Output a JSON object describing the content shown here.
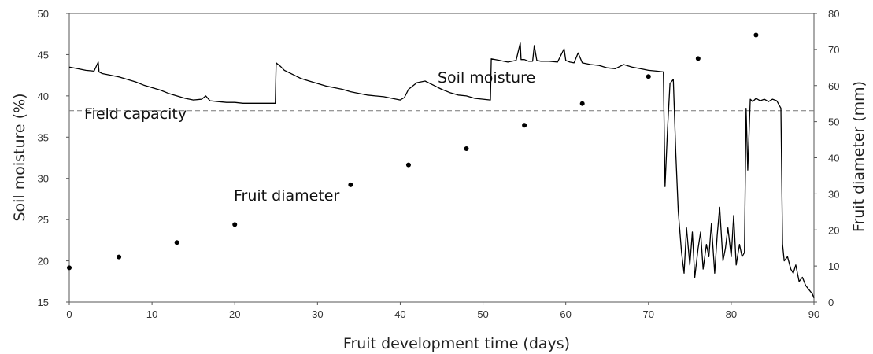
{
  "chart_data": {
    "type": "line",
    "xlabel": "Fruit development time (days)",
    "ylabel_left": "Soil moisture (%)",
    "ylabel_right": "Fruit diameter (mm)",
    "xlim": [
      0,
      90
    ],
    "ylim_left": [
      15,
      50
    ],
    "ylim_right": [
      0,
      80
    ],
    "x_ticks": [
      0,
      10,
      20,
      30,
      40,
      50,
      60,
      70,
      80,
      90
    ],
    "y_left_ticks": [
      15,
      20,
      25,
      30,
      35,
      40,
      45,
      50
    ],
    "y_right_ticks": [
      0,
      10,
      20,
      30,
      40,
      50,
      60,
      70,
      80
    ],
    "grid": false,
    "annotations": [
      {
        "text": "Soil moisture"
      },
      {
        "text": "Field capacity"
      },
      {
        "text": "Fruit diameter"
      }
    ],
    "field_capacity": {
      "axis": "left",
      "y": 38.2,
      "style": "dashed"
    },
    "series": [
      {
        "axis": "left",
        "kind": "line",
        "x": [
          0,
          1,
          2,
          3,
          3.5,
          3.6,
          4,
          5,
          6,
          7,
          8,
          9,
          10,
          11,
          12,
          13,
          14,
          15,
          16,
          16.5,
          17,
          18,
          19,
          20,
          21,
          22,
          23,
          24,
          24.9,
          25,
          25.5,
          26,
          27,
          28,
          29,
          30,
          31,
          32,
          33,
          34,
          35,
          36,
          37,
          38,
          39,
          40,
          40.5,
          41,
          42,
          43,
          44,
          45,
          46,
          47,
          48,
          49,
          50,
          50.9,
          51,
          52,
          53,
          54,
          54.5,
          54.6,
          55,
          55.5,
          56,
          56.2,
          56.5,
          57,
          58,
          59,
          59.8,
          60,
          60.5,
          61,
          61.5,
          62,
          63,
          64,
          65,
          66,
          67,
          68,
          69,
          70,
          71,
          71.8,
          72,
          72.3,
          72.6,
          73,
          73.3,
          73.6,
          74,
          74.3,
          74.6,
          75,
          75.3,
          75.6,
          76,
          76.3,
          76.6,
          77,
          77.3,
          77.6,
          78,
          78.3,
          78.6,
          79,
          79.3,
          79.6,
          80,
          80.3,
          80.6,
          81,
          81.3,
          81.6,
          81.8,
          82,
          82.3,
          82.6,
          83,
          83.5,
          84,
          84.5,
          85,
          85.5,
          86,
          86.2,
          86.4,
          86.8,
          87.2,
          87.5,
          87.8,
          88.2,
          88.6,
          89,
          89.4,
          89.8,
          90
        ],
        "y": [
          43.5,
          43.3,
          43.1,
          43.0,
          44.1,
          42.9,
          42.7,
          42.5,
          42.3,
          42.0,
          41.7,
          41.3,
          41.0,
          40.7,
          40.3,
          40.0,
          39.7,
          39.5,
          39.6,
          40.0,
          39.4,
          39.3,
          39.2,
          39.2,
          39.1,
          39.1,
          39.1,
          39.1,
          39.1,
          44.0,
          43.6,
          43.1,
          42.6,
          42.1,
          41.8,
          41.5,
          41.2,
          41.0,
          40.8,
          40.5,
          40.3,
          40.1,
          40.0,
          39.9,
          39.7,
          39.5,
          39.8,
          40.8,
          41.6,
          41.8,
          41.3,
          40.8,
          40.4,
          40.1,
          40.0,
          39.7,
          39.6,
          39.5,
          44.5,
          44.3,
          44.1,
          44.3,
          46.4,
          44.4,
          44.4,
          44.2,
          44.2,
          46.1,
          44.3,
          44.2,
          44.2,
          44.1,
          45.7,
          44.3,
          44.1,
          44.0,
          45.2,
          44.0,
          43.8,
          43.7,
          43.4,
          43.3,
          43.8,
          43.5,
          43.3,
          43.1,
          43.0,
          42.9,
          29.0,
          36.0,
          41.5,
          42.0,
          33.0,
          26.0,
          21.0,
          18.5,
          24.0,
          19.5,
          23.5,
          18.0,
          21.5,
          23.5,
          19.0,
          22.0,
          20.5,
          24.5,
          18.5,
          23.0,
          26.5,
          20.0,
          21.5,
          24.0,
          20.5,
          25.5,
          19.5,
          22.0,
          20.5,
          21.0,
          38.5,
          31.0,
          39.6,
          39.3,
          39.7,
          39.4,
          39.6,
          39.3,
          39.6,
          39.4,
          38.5,
          22.0,
          20.0,
          20.5,
          19.0,
          18.5,
          19.5,
          17.5,
          18.0,
          17.0,
          16.5,
          16.0,
          15.5
        ]
      },
      {
        "axis": "right",
        "kind": "points",
        "x": [
          0,
          6,
          13,
          20,
          34,
          41,
          48,
          55,
          62,
          70,
          76,
          83
        ],
        "y": [
          9.5,
          12.5,
          16.5,
          21.5,
          32.5,
          38.0,
          42.5,
          49.0,
          55.0,
          62.5,
          67.5,
          74.0
        ]
      }
    ]
  }
}
